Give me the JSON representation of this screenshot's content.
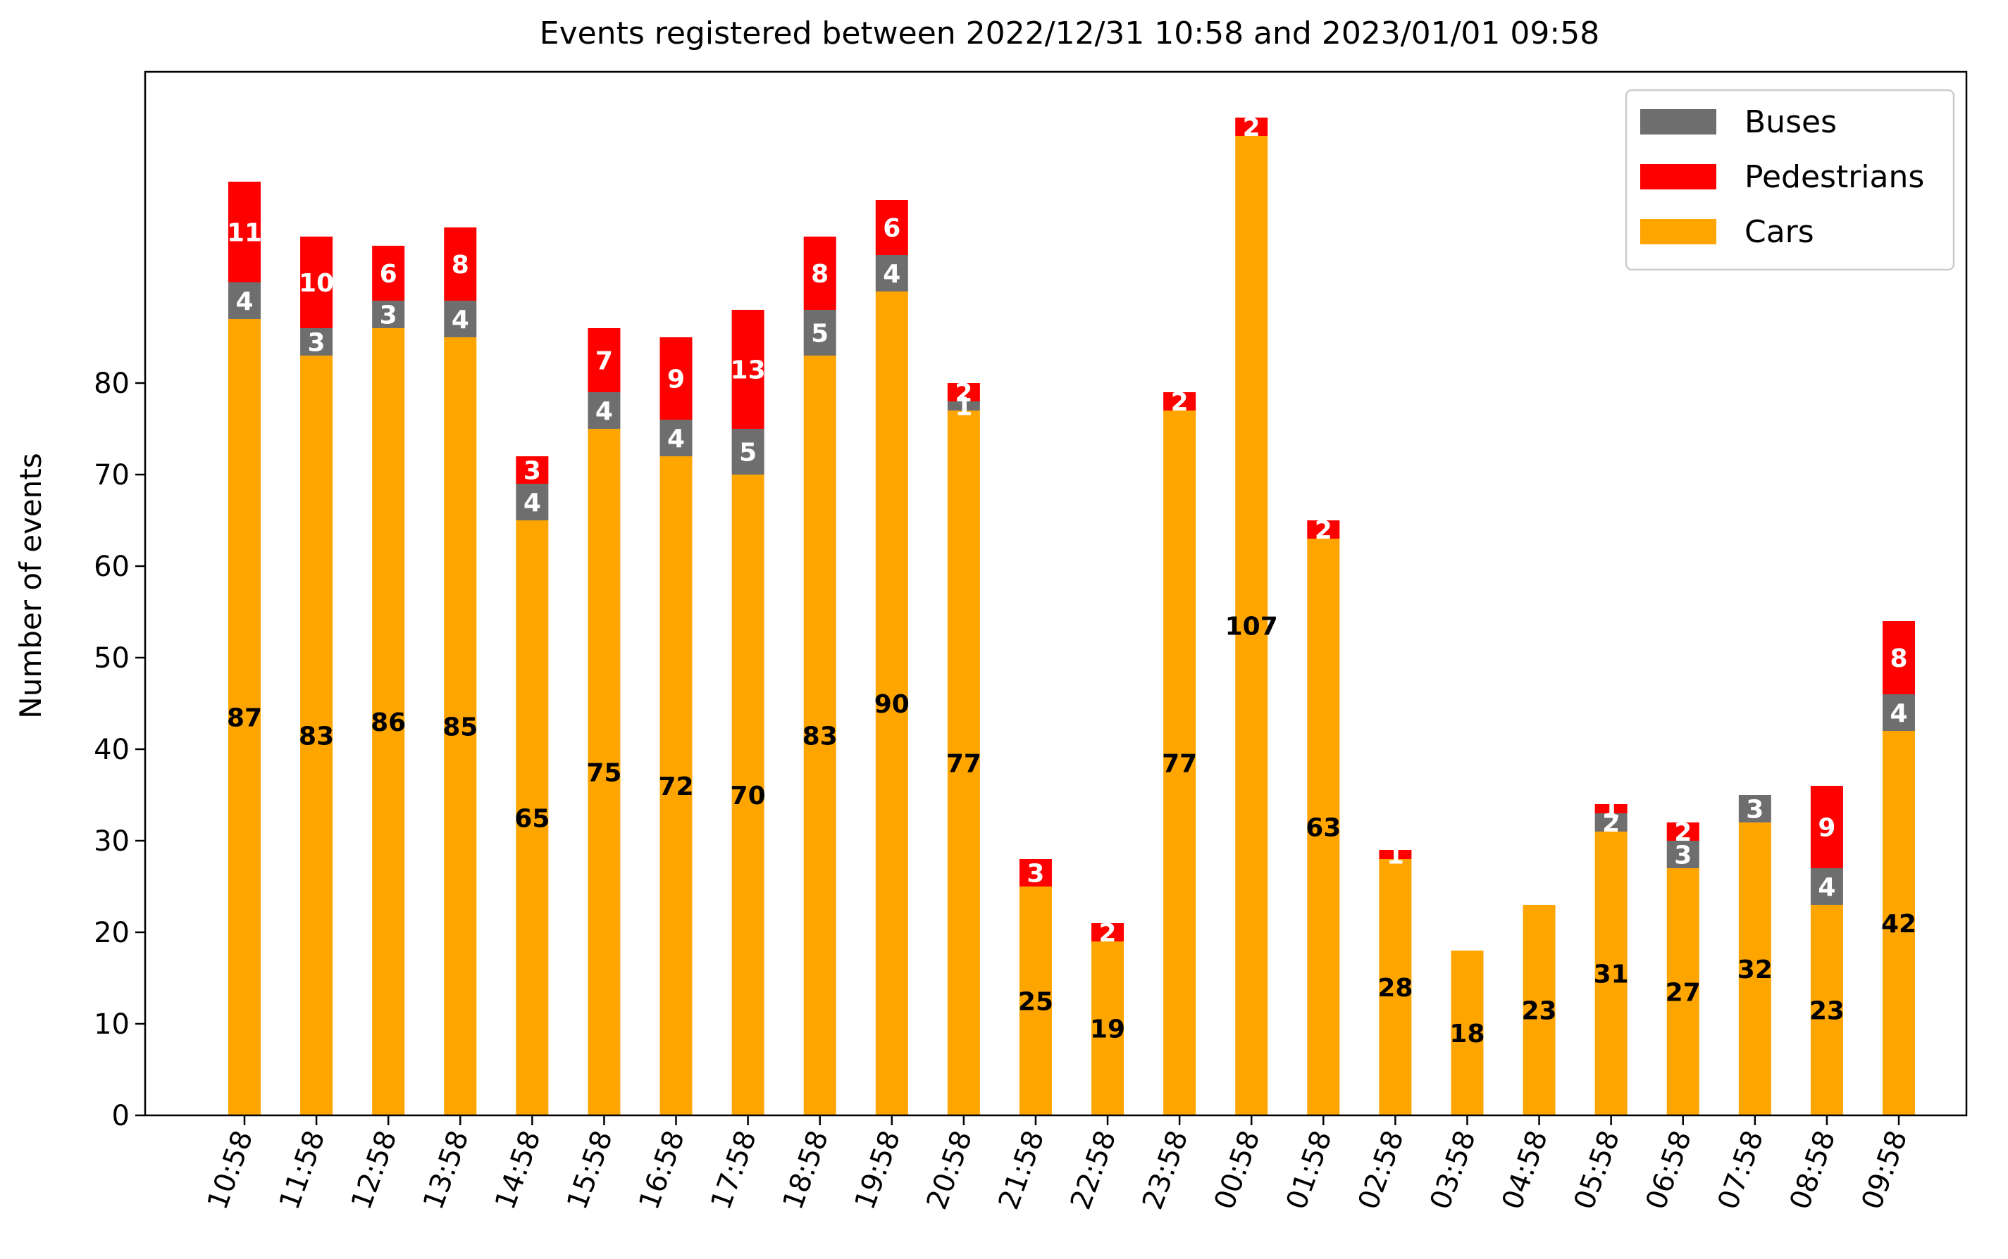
{
  "chart_data": {
    "type": "bar",
    "stacked": true,
    "title": "Events registered between 2022/12/31 10:58 and 2023/01/01 09:58",
    "xlabel": "",
    "ylabel": "Number of events",
    "ylim": [
      0,
      114
    ],
    "yticks": [
      0,
      10,
      20,
      30,
      40,
      50,
      60,
      70,
      80
    ],
    "categories": [
      "10:58",
      "11:58",
      "12:58",
      "13:58",
      "14:58",
      "15:58",
      "16:58",
      "17:58",
      "18:58",
      "19:58",
      "20:58",
      "21:58",
      "22:58",
      "23:58",
      "00:58",
      "01:58",
      "02:58",
      "03:58",
      "04:58",
      "05:58",
      "06:58",
      "07:58",
      "08:58",
      "09:58"
    ],
    "series": [
      {
        "name": "Cars",
        "color": "#ffa500",
        "label_color": "#000000",
        "values": [
          87,
          83,
          86,
          85,
          65,
          75,
          72,
          70,
          83,
          90,
          77,
          25,
          19,
          77,
          107,
          63,
          28,
          18,
          23,
          31,
          27,
          32,
          23,
          42
        ]
      },
      {
        "name": "Buses",
        "color": "#6e6e6e",
        "label_color": "#ffffff",
        "values": [
          4,
          3,
          3,
          4,
          4,
          4,
          4,
          5,
          5,
          4,
          1,
          0,
          0,
          0,
          0,
          0,
          0,
          0,
          0,
          2,
          3,
          3,
          4,
          4
        ]
      },
      {
        "name": "Pedestrians",
        "color": "#ff0000",
        "label_color": "#ffffff",
        "values": [
          11,
          10,
          6,
          8,
          3,
          7,
          9,
          13,
          8,
          6,
          2,
          3,
          2,
          2,
          2,
          2,
          1,
          0,
          0,
          1,
          2,
          0,
          9,
          8
        ]
      }
    ],
    "legend": {
      "position": "top-right",
      "order": [
        "Buses",
        "Pedestrians",
        "Cars"
      ]
    },
    "grid": false
  }
}
